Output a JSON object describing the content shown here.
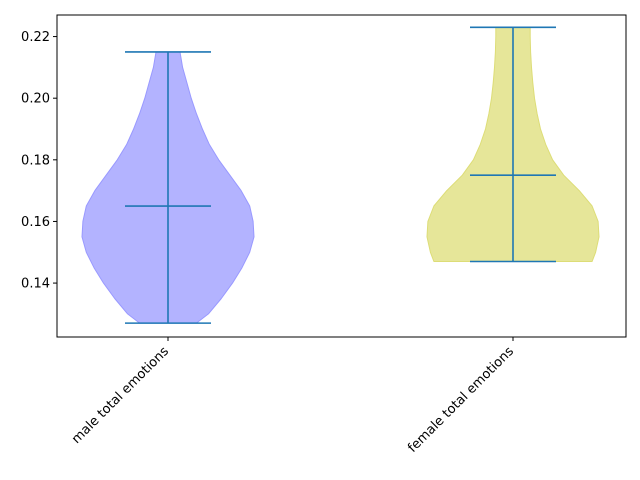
{
  "chart_data": {
    "type": "violin",
    "categories": [
      "male total emotions",
      "female total emotions"
    ],
    "y_ticks": [
      "0.14",
      "0.16",
      "0.18",
      "0.20",
      "0.22"
    ],
    "ylim": [
      0.1225,
      0.227
    ],
    "grid": false,
    "series": [
      {
        "category": "male total emotions",
        "min": 0.127,
        "median": 0.165,
        "max": 0.215,
        "fill_color": "#9999ff",
        "density_profile": [
          [
            0.127,
            0.33
          ],
          [
            0.13,
            0.47
          ],
          [
            0.135,
            0.62
          ],
          [
            0.14,
            0.75
          ],
          [
            0.145,
            0.86
          ],
          [
            0.15,
            0.95
          ],
          [
            0.155,
            1.0
          ],
          [
            0.16,
            0.99
          ],
          [
            0.165,
            0.95
          ],
          [
            0.17,
            0.85
          ],
          [
            0.175,
            0.72
          ],
          [
            0.18,
            0.59
          ],
          [
            0.185,
            0.48
          ],
          [
            0.19,
            0.4
          ],
          [
            0.195,
            0.33
          ],
          [
            0.2,
            0.27
          ],
          [
            0.205,
            0.22
          ],
          [
            0.21,
            0.17
          ],
          [
            0.215,
            0.14
          ]
        ]
      },
      {
        "category": "female total emotions",
        "min": 0.147,
        "median": 0.175,
        "max": 0.223,
        "fill_color": "#dddd77",
        "density_profile": [
          [
            0.147,
            0.92
          ],
          [
            0.15,
            0.96
          ],
          [
            0.155,
            1.0
          ],
          [
            0.16,
            0.99
          ],
          [
            0.165,
            0.92
          ],
          [
            0.17,
            0.77
          ],
          [
            0.175,
            0.59
          ],
          [
            0.18,
            0.46
          ],
          [
            0.185,
            0.38
          ],
          [
            0.19,
            0.32
          ],
          [
            0.195,
            0.28
          ],
          [
            0.2,
            0.25
          ],
          [
            0.205,
            0.23
          ],
          [
            0.21,
            0.215
          ],
          [
            0.215,
            0.205
          ],
          [
            0.22,
            0.2
          ],
          [
            0.223,
            0.2
          ]
        ]
      }
    ]
  }
}
